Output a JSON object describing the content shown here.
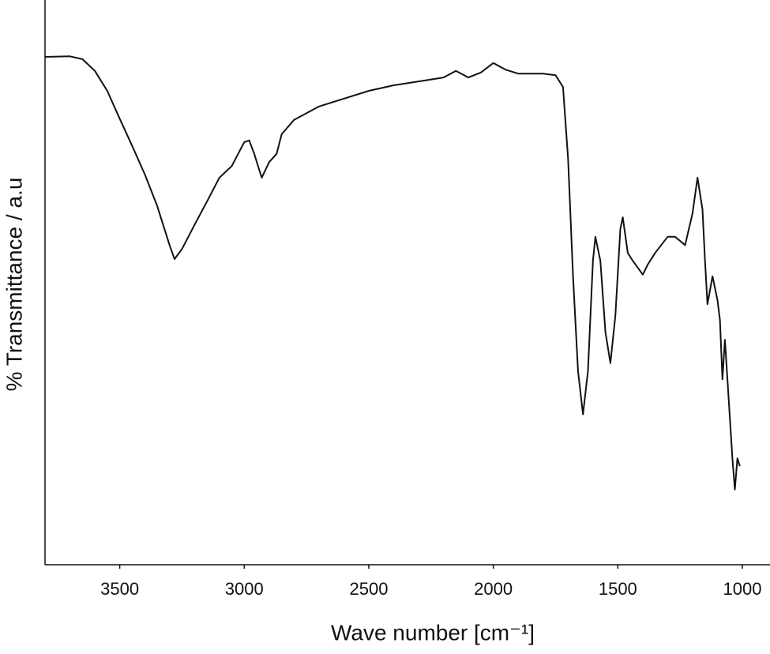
{
  "chart_data": {
    "type": "line",
    "xlabel": "Wave number [cm⁻¹]",
    "ylabel": "% Transmittance / a.u",
    "xlim": [
      3800,
      1000
    ],
    "ylim": [
      0,
      100
    ],
    "xticks": [
      3500,
      3000,
      2500,
      2000,
      1500,
      1000
    ],
    "series": [
      {
        "color": "#111111",
        "x": [
          3800,
          3700,
          3650,
          3600,
          3550,
          3500,
          3450,
          3400,
          3350,
          3300,
          3280,
          3250,
          3200,
          3150,
          3100,
          3050,
          3000,
          2980,
          2960,
          2930,
          2900,
          2870,
          2850,
          2800,
          2700,
          2600,
          2500,
          2400,
          2300,
          2200,
          2150,
          2100,
          2050,
          2000,
          1950,
          1900,
          1800,
          1750,
          1720,
          1700,
          1680,
          1660,
          1640,
          1620,
          1600,
          1590,
          1570,
          1550,
          1530,
          1510,
          1490,
          1480,
          1460,
          1440,
          1400,
          1380,
          1350,
          1300,
          1270,
          1230,
          1200,
          1180,
          1160,
          1150,
          1140,
          1120,
          1100,
          1090,
          1080,
          1070,
          1060,
          1040,
          1030,
          1020,
          1010
        ],
        "values": [
          91.2,
          91.3,
          90.8,
          88.7,
          85.1,
          80.1,
          75.2,
          70.2,
          64.5,
          57.4,
          54.9,
          56.7,
          61.0,
          65.2,
          69.5,
          71.6,
          75.9,
          76.2,
          73.8,
          69.5,
          72.3,
          73.8,
          77.3,
          79.9,
          82.3,
          83.7,
          85.1,
          86.1,
          86.8,
          87.5,
          88.7,
          87.5,
          88.4,
          90.1,
          88.9,
          88.2,
          88.2,
          87.9,
          85.8,
          73.0,
          51.8,
          34.8,
          27.0,
          34.8,
          54.6,
          58.9,
          54.6,
          41.8,
          36.2,
          44.7,
          60.3,
          62.4,
          56.0,
          54.6,
          52.1,
          53.9,
          56.0,
          58.9,
          58.9,
          57.4,
          63.1,
          69.5,
          63.8,
          54.6,
          46.8,
          51.8,
          47.5,
          44.0,
          33.3,
          40.4,
          33.3,
          19.1,
          13.5,
          19.1,
          17.7
        ]
      }
    ]
  }
}
